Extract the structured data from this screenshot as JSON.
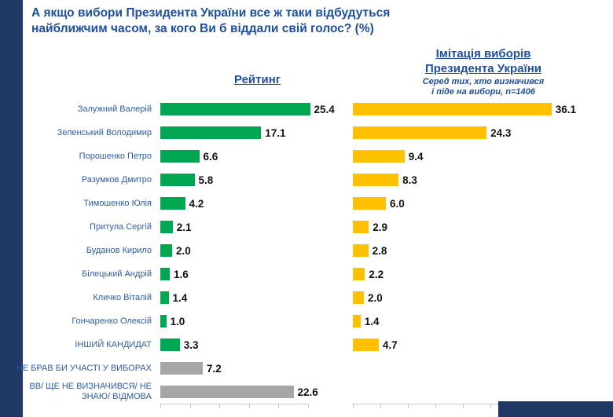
{
  "header": {
    "title_lines": [
      "А якщо вибори Президента України все ж таки відбудуться",
      "найближчим часом, за кого Ви б віддали свій голос? (%)"
    ]
  },
  "left_chart": {
    "header": "Рейтинг"
  },
  "right_chart": {
    "header_lines": [
      "Імітація виборів",
      "Президента України"
    ],
    "subtitle_lines": [
      "Серед тих, хто визначився",
      "і піде на вибори, n=1406"
    ]
  },
  "chart_data": {
    "type": "bar",
    "orientation": "horizontal",
    "title": "А якщо вибори Президента України все ж таки відбудуться найближчим часом, за кого Ви б віддали свій голос? (%)",
    "grid": false,
    "legend_position": "top",
    "categories": [
      "Залужний Валерій",
      "Зеленський Володимир",
      "Порошенко Петро",
      "Разумков Дмитро",
      "Тимошенко Юлія",
      "Притула Сергій",
      "Буданов Кирило",
      "Білецький Андрій",
      "Кличко Віталій",
      "Гончаренко Олексій",
      "ІНШИЙ КАНДИДАТ",
      "НЕ БРАВ БИ УЧАСТІ У ВИБОРАХ",
      "ВВ/ ЩЕ НЕ ВИЗНАЧИВСЯ/ НЕ ЗНАЮ/ ВІДМОВА"
    ],
    "series": [
      {
        "name": "Рейтинг",
        "values": [
          25.4,
          17.1,
          6.6,
          5.8,
          4.2,
          2.1,
          2.0,
          1.6,
          1.4,
          1.0,
          3.3,
          7.2,
          22.6
        ],
        "xlim": [
          0,
          27
        ]
      },
      {
        "name": "Імітація виборів Президента України. Серед тих, хто визначився і піде на вибори, n=1406",
        "values": [
          36.1,
          24.3,
          9.4,
          8.3,
          6.0,
          2.9,
          2.8,
          2.2,
          2.0,
          1.4,
          4.7,
          null,
          null
        ],
        "xlim": [
          0,
          38
        ]
      }
    ],
    "neutral_row_indexes": [
      11,
      12
    ],
    "colors": {
      "rating_bar": "#00A651",
      "imitation_bar": "#FFC000",
      "neutral_bar": "#A6A6A6",
      "accent_text": "#1F4E9C",
      "label_text": "#2E5CA8",
      "value_text": "#111111",
      "stripe": "#1F3864"
    }
  }
}
